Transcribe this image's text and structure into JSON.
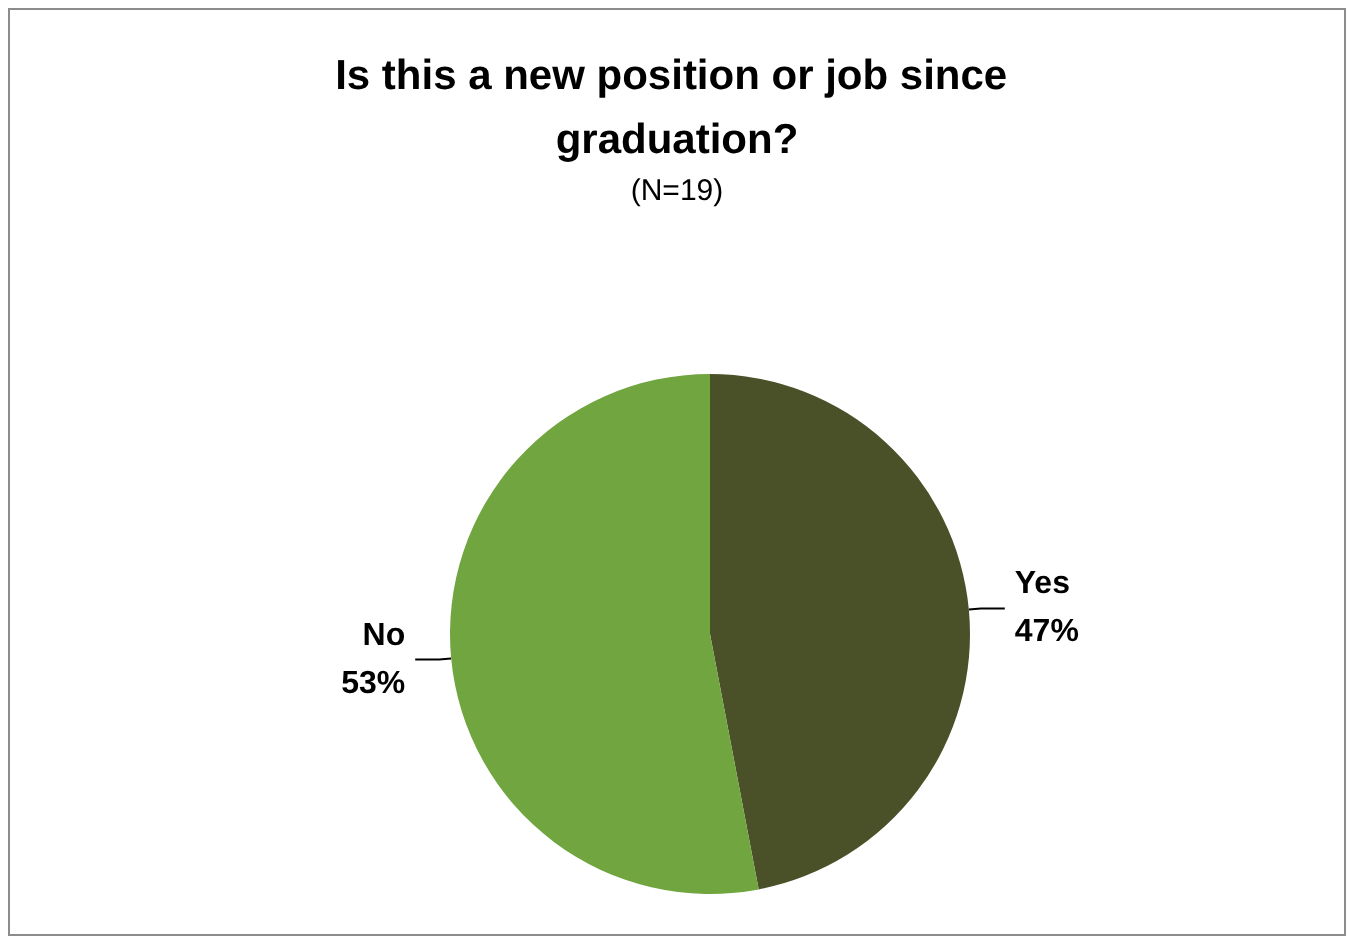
{
  "chart_data": {
    "type": "pie",
    "title": "Is this a new position or job since graduation?",
    "subtitle": "(N=19)",
    "categories": [
      "Yes",
      "No"
    ],
    "values": [
      47,
      53
    ],
    "colors": [
      "#4a5129",
      "#70a540"
    ],
    "value_labels": [
      "47%",
      "53%"
    ],
    "legend": false
  }
}
